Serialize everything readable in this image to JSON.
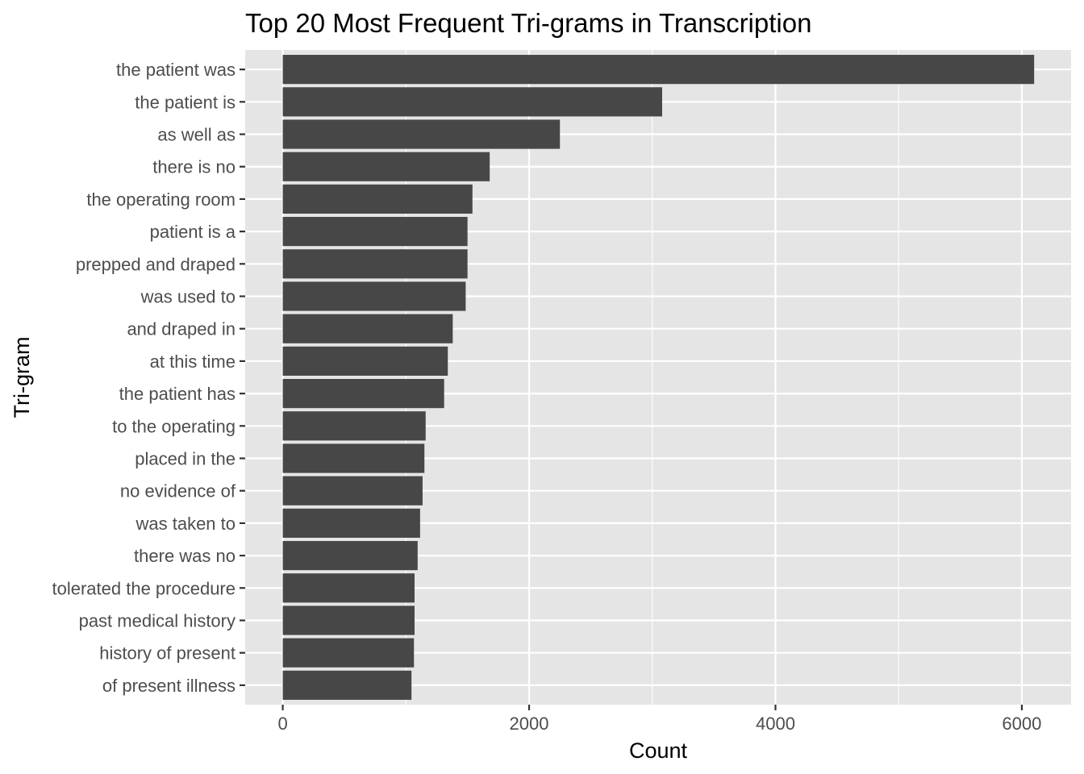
{
  "chart_data": {
    "type": "bar",
    "orientation": "horizontal",
    "title": "Top 20 Most Frequent Tri-grams in Transcription",
    "xlabel": "Count",
    "ylabel": "Tri-gram",
    "categories": [
      "the patient was",
      "the patient is",
      "as well as",
      "there is no",
      "the operating room",
      "patient is a",
      "prepped and draped",
      "was used to",
      "and draped in",
      "at this time",
      "the patient has",
      "to the operating",
      "placed in the",
      "no evidence of",
      "was taken to",
      "there was no",
      "tolerated the procedure",
      "past medical history",
      "history of present",
      "of present illness"
    ],
    "values": [
      6100,
      3080,
      2250,
      1680,
      1540,
      1500,
      1500,
      1485,
      1380,
      1340,
      1310,
      1160,
      1150,
      1135,
      1115,
      1095,
      1070,
      1070,
      1065,
      1045
    ],
    "xlim": [
      -305,
      6400
    ],
    "xticks": [
      0,
      2000,
      4000,
      6000
    ],
    "xtick_labels": [
      "0",
      "2000",
      "4000",
      "6000"
    ],
    "grid": true,
    "colors": {
      "bar": "#474747",
      "panel": "#e5e5e5",
      "grid": "#ffffff",
      "tick_text": "#4d4d4d",
      "tick_mark": "#333333"
    }
  }
}
